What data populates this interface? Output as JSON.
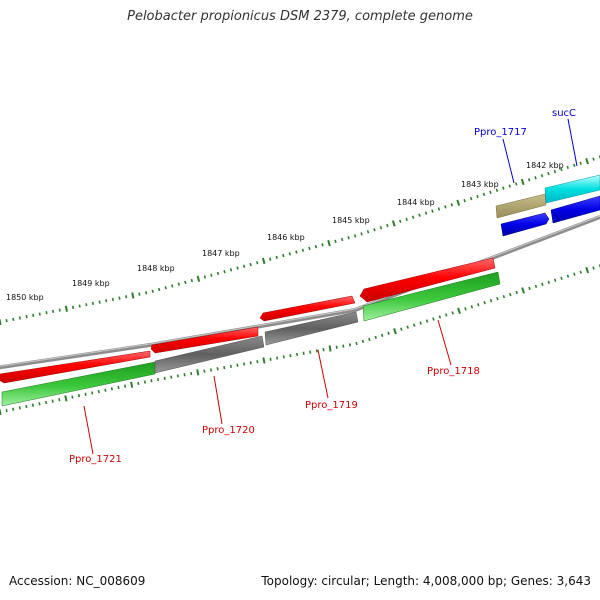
{
  "title": "Pelobacter propionicus DSM 2379, complete genome",
  "footer": {
    "accession": "Accession: NC_008609",
    "summary": "Topology: circular; Length: 4,008,000 bp; Genes: 3,643"
  },
  "colors": {
    "backbone": "#808080",
    "tick": "#2e7d2e",
    "label_red": "#cc0000",
    "label_blue": "#0000cc"
  },
  "scale_ticks": [
    "1850 kbp",
    "1849 kbp",
    "1848 kbp",
    "1847 kbp",
    "1846 kbp",
    "1845 kbp",
    "1844 kbp",
    "1843 kbp",
    "1842 kbp"
  ],
  "genes": [
    {
      "id": "Ppro_1721",
      "label": "Ppro_1721",
      "label_color": "#cc0000"
    },
    {
      "id": "Ppro_1720",
      "label": "Ppro_1720",
      "label_color": "#cc0000"
    },
    {
      "id": "Ppro_1719",
      "label": "Ppro_1719",
      "label_color": "#cc0000"
    },
    {
      "id": "Ppro_1718",
      "label": "Ppro_1718",
      "label_color": "#cc0000"
    },
    {
      "id": "Ppro_1717",
      "label": "Ppro_1717",
      "label_color": "#0000cc"
    },
    {
      "id": "sucC",
      "label": "sucC",
      "label_color": "#0000cc"
    }
  ]
}
